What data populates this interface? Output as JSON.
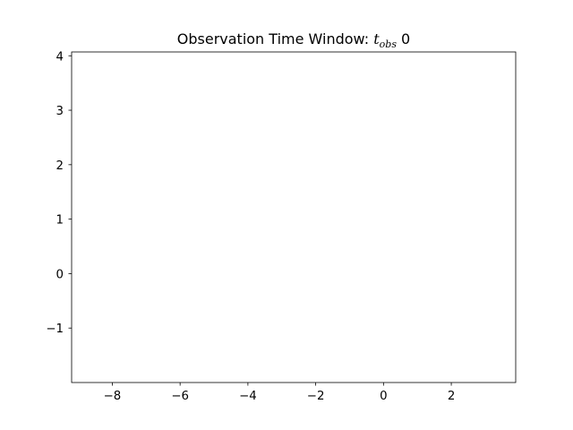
{
  "chart_data": {
    "type": "line",
    "title": {
      "prefix": "Observation Time Window: ",
      "symbol": "t",
      "subscript": "obs",
      "suffix": " 0"
    },
    "xlabel": "",
    "ylabel": "",
    "xlim": [
      -9.2,
      3.9
    ],
    "ylim": [
      -2.0,
      4.07
    ],
    "xticks": [
      -8,
      -6,
      -4,
      -2,
      0,
      2
    ],
    "xtick_labels": [
      "−8",
      "−6",
      "−4",
      "−2",
      "0",
      "2"
    ],
    "yticks": [
      -1,
      0,
      1,
      2,
      3,
      4
    ],
    "ytick_labels": [
      "−1",
      "0",
      "1",
      "2",
      "3",
      "4"
    ],
    "series": [],
    "grid": false,
    "legend": null
  }
}
